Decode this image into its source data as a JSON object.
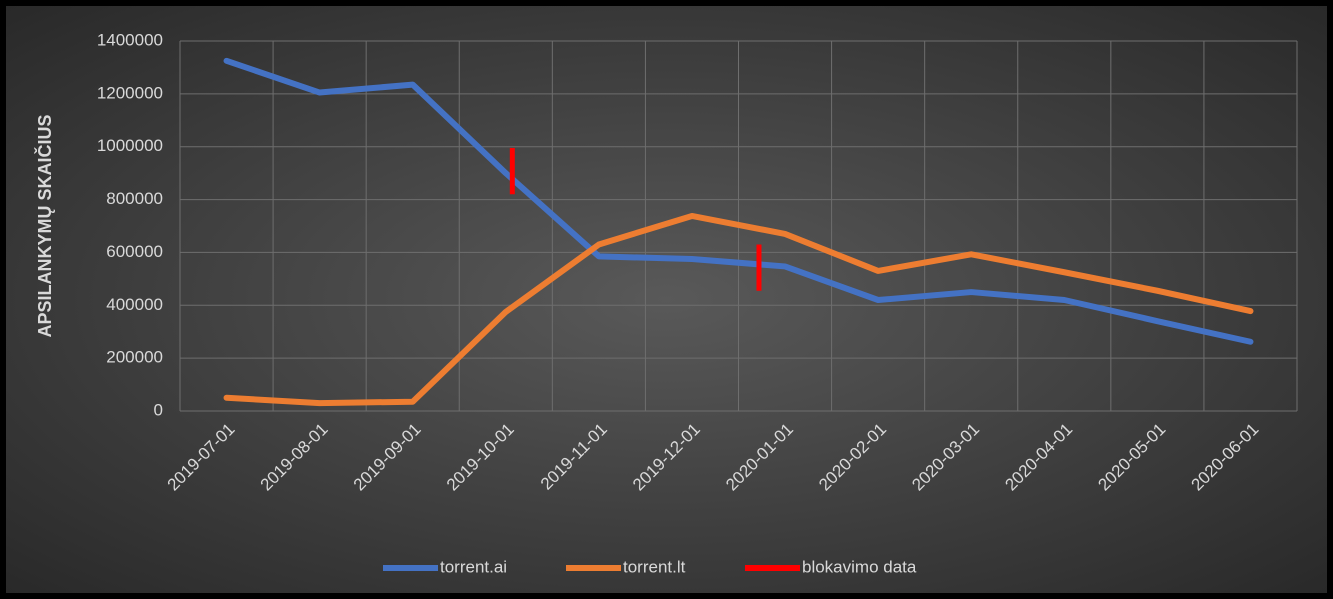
{
  "chart_data": {
    "type": "line",
    "y_axis_label": "APSILANKYMŲ SKAIČIUS",
    "categories": [
      "2019-07-01",
      "2019-08-01",
      "2019-09-01",
      "2019-10-01",
      "2019-11-01",
      "2019-12-01",
      "2020-01-01",
      "2020-02-01",
      "2020-03-01",
      "2020-04-01",
      "2020-05-01",
      "2020-06-01"
    ],
    "series": [
      {
        "name": "torrent.ai",
        "color": "#4472c4",
        "values": [
          1325000,
          1205000,
          1235000,
          900000,
          585000,
          575000,
          547000,
          420000,
          450000,
          420000,
          340000,
          262000
        ]
      },
      {
        "name": "torrent.lt",
        "color": "#ed7d31",
        "values": [
          50000,
          30000,
          35000,
          375000,
          630000,
          738000,
          670000,
          530000,
          593000,
          525000,
          455000,
          378000
        ]
      },
      {
        "name": "blokavimo data",
        "color": "#ff0000",
        "x": [
          3.07,
          5.72
        ],
        "values": [
          [
            995000,
            820000
          ],
          [
            630000,
            455000
          ]
        ]
      }
    ],
    "ylim": [
      0,
      1400000
    ],
    "yticks": [
      0,
      200000,
      400000,
      600000,
      800000,
      1000000,
      1200000,
      1400000
    ],
    "grid": true,
    "legend": "bottom"
  }
}
